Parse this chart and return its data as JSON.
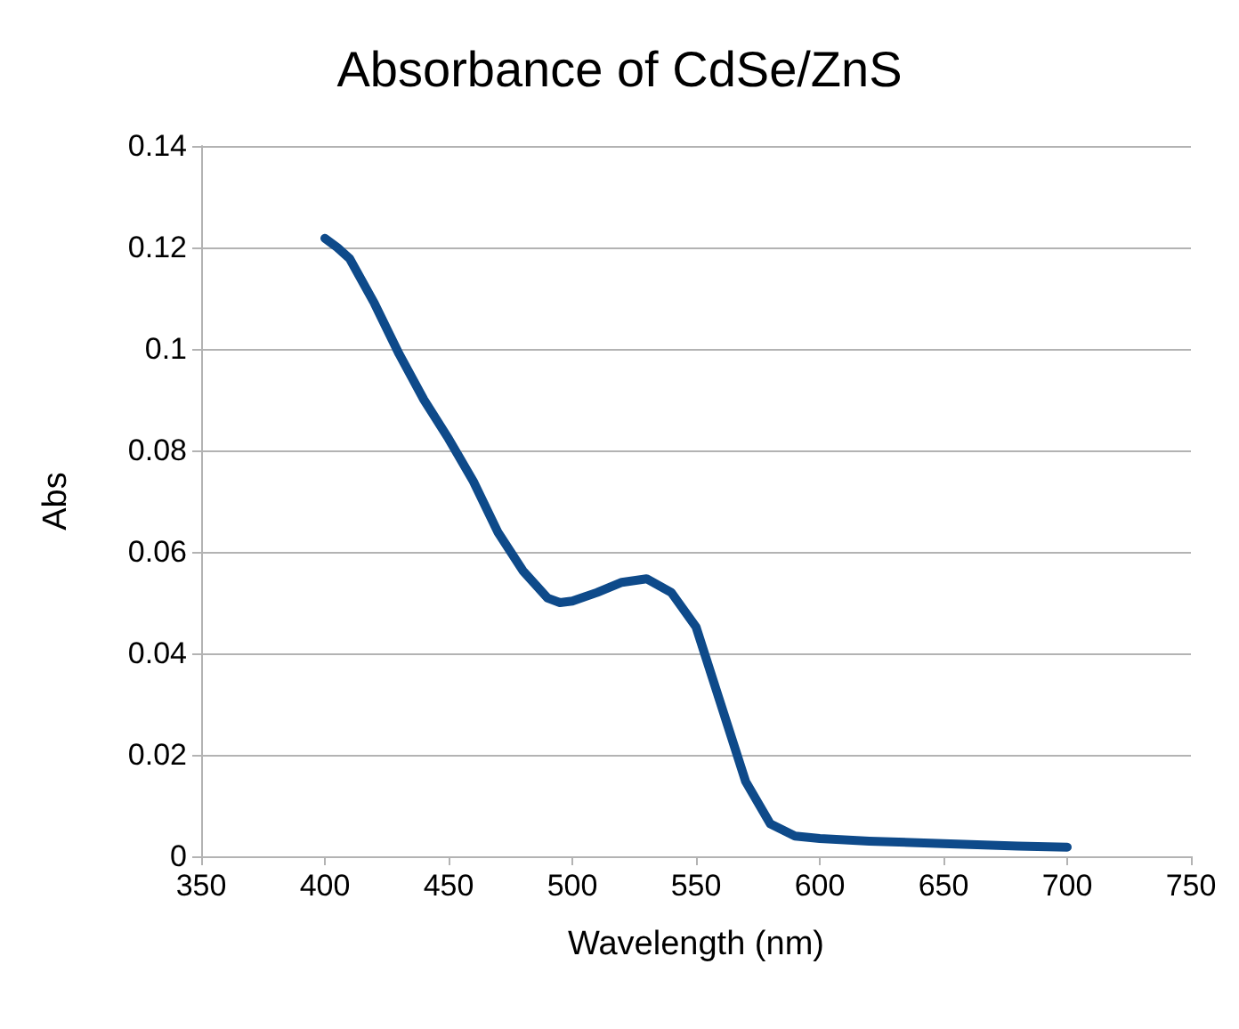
{
  "chart_data": {
    "type": "line",
    "title": "Absorbance of CdSe/ZnS",
    "xlabel": "Wavelength (nm)",
    "ylabel": "Abs",
    "x": [
      400,
      405,
      410,
      420,
      430,
      440,
      450,
      460,
      470,
      480,
      490,
      495,
      500,
      510,
      520,
      530,
      540,
      550,
      560,
      570,
      580,
      590,
      600,
      620,
      650,
      680,
      700
    ],
    "series": [
      {
        "color": "#0e4a8a",
        "values": [
          0.1218,
          0.12,
          0.1178,
          0.109,
          0.099,
          0.09,
          0.0823,
          0.0739,
          0.0638,
          0.0563,
          0.0509,
          0.05,
          0.0503,
          0.052,
          0.054,
          0.0547,
          0.052,
          0.0452,
          0.03,
          0.0148,
          0.0064,
          0.004,
          0.0035,
          0.003,
          0.0025,
          0.002,
          0.0018
        ]
      }
    ],
    "xlim": [
      350,
      750
    ],
    "xticks": [
      350,
      400,
      450,
      500,
      550,
      600,
      650,
      700,
      750
    ],
    "ylim": [
      0,
      0.14
    ],
    "yticks": [
      0,
      0.02,
      0.04,
      0.06,
      0.08,
      0.1,
      0.12,
      0.14
    ],
    "grid": "y",
    "marker": "none",
    "line_style": "solid"
  }
}
